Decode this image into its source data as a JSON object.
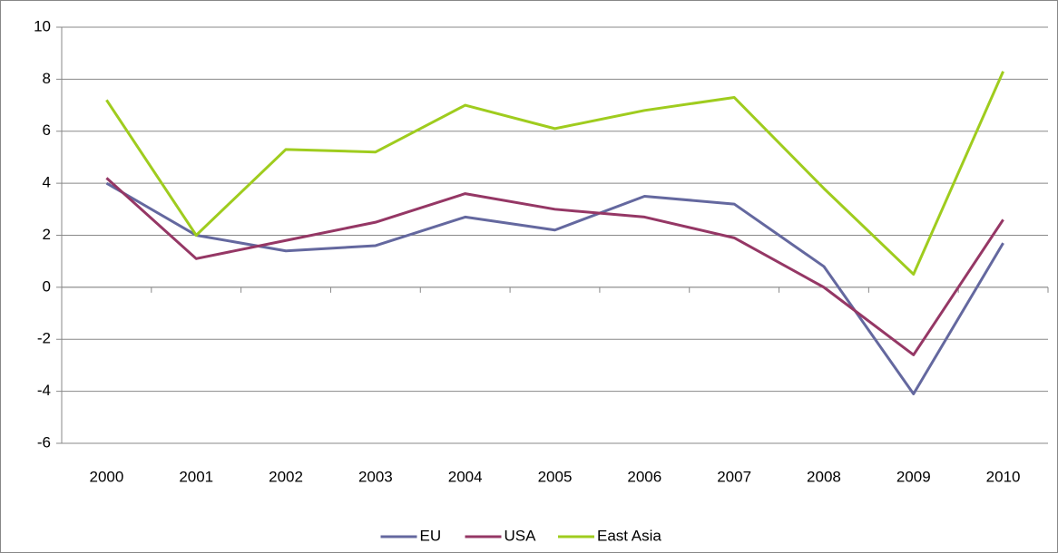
{
  "chart_data": {
    "type": "line",
    "categories": [
      "2000",
      "2001",
      "2002",
      "2003",
      "2004",
      "2005",
      "2006",
      "2007",
      "2008",
      "2009",
      "2010"
    ],
    "series": [
      {
        "name": "EU",
        "color": "#64689f",
        "values": [
          4.0,
          2.0,
          1.4,
          1.6,
          2.7,
          2.2,
          3.5,
          3.2,
          0.8,
          -4.1,
          1.7
        ]
      },
      {
        "name": "USA",
        "color": "#953765",
        "values": [
          4.2,
          1.1,
          1.8,
          2.5,
          3.6,
          3.0,
          2.7,
          1.9,
          0.0,
          -2.6,
          2.6
        ]
      },
      {
        "name": "East Asia",
        "color": "#9fcc1e",
        "values": [
          7.2,
          2.0,
          5.3,
          5.2,
          7.0,
          6.1,
          6.8,
          7.3,
          3.8,
          0.5,
          8.3
        ]
      }
    ],
    "ylim": [
      -6,
      10
    ],
    "yticks": [
      -6,
      -4,
      -2,
      0,
      2,
      4,
      6,
      8,
      10
    ],
    "grid": true,
    "legend": "bottom"
  }
}
